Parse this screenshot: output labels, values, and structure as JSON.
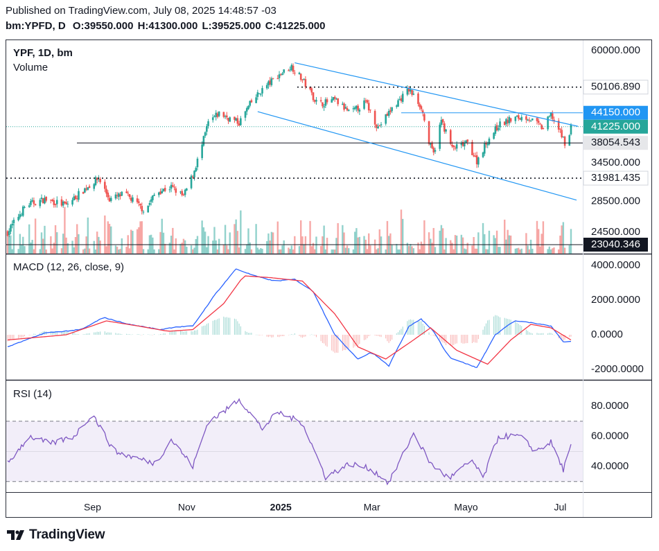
{
  "header": {
    "line1": "Published on TradingView.com, July 08, 2025 14:48:57 -03",
    "symbol": "bm:YPFD, D",
    "o_label": "O:",
    "o": "39550.000",
    "h_label": "H:",
    "h": "41300.000",
    "l_label": "L:",
    "l": "39525.000",
    "c_label": "C:",
    "c": "41225.000"
  },
  "brand": "TradingView",
  "colors": {
    "up": "#26a69a",
    "down": "#ef5350",
    "macd": "#2962ff",
    "signal": "#f23645",
    "rsi": "#7e57c2",
    "channel": "#2196f3"
  },
  "chart_data": [
    {
      "type": "candlestick",
      "title": "YPF, 1D, bm",
      "legend": [
        "Volume"
      ],
      "x_ticks": [
        "Sep",
        "Nov",
        "2025",
        "Mar",
        "Mayo",
        "Jul"
      ],
      "y_ticks": [
        "60000.000",
        "34500.000",
        "28500.000",
        "24500.000"
      ],
      "ylim": [
        22000,
        62000
      ],
      "y_scale": "log",
      "price_labels": [
        {
          "value": "50106.890",
          "style": "dotted-line"
        },
        {
          "value": "44150.000",
          "style": "blue-horizontal"
        },
        {
          "value": "41225.000",
          "style": "last-price"
        },
        {
          "value": "38054.543",
          "style": "horizontal-line"
        },
        {
          "value": "31981.435",
          "style": "dotted-line"
        },
        {
          "value": "23040.346",
          "style": "horizontal-line"
        }
      ],
      "last": {
        "open": 39550,
        "high": 41300,
        "low": 39525,
        "close": 41225
      },
      "path_points": [
        [
          "2024-07-08",
          24500
        ],
        [
          "2024-07-20",
          28000
        ],
        [
          "2024-08-01",
          28800
        ],
        [
          "2024-08-15",
          28000
        ],
        [
          "2024-08-28",
          30500
        ],
        [
          "2024-09-05",
          31980
        ],
        [
          "2024-09-12",
          28800
        ],
        [
          "2024-09-22",
          29600
        ],
        [
          "2024-10-05",
          27200
        ],
        [
          "2024-10-12",
          29800
        ],
        [
          "2024-10-22",
          30600
        ],
        [
          "2024-10-30",
          29200
        ],
        [
          "2024-11-05",
          32500
        ],
        [
          "2024-11-10",
          36500
        ],
        [
          "2024-11-15",
          42000
        ],
        [
          "2024-11-22",
          44000
        ],
        [
          "2024-12-05",
          42000
        ],
        [
          "2024-12-12",
          46000
        ],
        [
          "2024-12-20",
          49500
        ],
        [
          "2024-12-30",
          53000
        ],
        [
          "2025-01-08",
          55500
        ],
        [
          "2025-01-15",
          52000
        ],
        [
          "2025-01-25",
          46000
        ],
        [
          "2025-02-05",
          47000
        ],
        [
          "2025-02-15",
          44000
        ],
        [
          "2025-02-25",
          46500
        ],
        [
          "2025-03-05",
          41000
        ],
        [
          "2025-03-15",
          45500
        ],
        [
          "2025-03-25",
          49500
        ],
        [
          "2025-04-02",
          45500
        ],
        [
          "2025-04-07",
          38000
        ],
        [
          "2025-04-10",
          36000
        ],
        [
          "2025-04-15",
          42500
        ],
        [
          "2025-04-22",
          37000
        ],
        [
          "2025-05-02",
          38000
        ],
        [
          "2025-05-08",
          34800
        ],
        [
          "2025-05-15",
          38500
        ],
        [
          "2025-05-22",
          41500
        ],
        [
          "2025-06-01",
          43000
        ],
        [
          "2025-06-10",
          43200
        ],
        [
          "2025-06-20",
          40800
        ],
        [
          "2025-06-25",
          43800
        ],
        [
          "2025-07-01",
          40000
        ],
        [
          "2025-07-04",
          38200
        ],
        [
          "2025-07-07",
          39500
        ],
        [
          "2025-07-08",
          41225
        ]
      ],
      "volume": "bars, up #26a69a / down #ef5350, faded"
    },
    {
      "type": "line",
      "title": "MACD (12, 26, close, 9)",
      "y_ticks": [
        "4000.0000",
        "2000.0000",
        "0.0000",
        "-2000.0000"
      ],
      "ylim": [
        -2400,
        4400
      ],
      "macd_points": [
        [
          "2024-07-08",
          -700
        ],
        [
          "2024-08-01",
          100
        ],
        [
          "2024-08-25",
          300
        ],
        [
          "2024-09-08",
          1000
        ],
        [
          "2024-09-25",
          600
        ],
        [
          "2024-10-15",
          300
        ],
        [
          "2024-10-25",
          450
        ],
        [
          "2024-11-05",
          500
        ],
        [
          "2024-11-20",
          2400
        ],
        [
          "2024-12-03",
          3800
        ],
        [
          "2024-12-15",
          3400
        ],
        [
          "2024-12-28",
          3100
        ],
        [
          "2025-01-10",
          3200
        ],
        [
          "2025-01-22",
          2500
        ],
        [
          "2025-02-05",
          0
        ],
        [
          "2025-02-20",
          -1400
        ],
        [
          "2025-03-01",
          -1000
        ],
        [
          "2025-03-12",
          -1800
        ],
        [
          "2025-03-25",
          500
        ],
        [
          "2025-04-02",
          900
        ],
        [
          "2025-04-10",
          200
        ],
        [
          "2025-04-20",
          -1300
        ],
        [
          "2025-05-08",
          -1900
        ],
        [
          "2025-05-20",
          0
        ],
        [
          "2025-06-01",
          800
        ],
        [
          "2025-06-12",
          700
        ],
        [
          "2025-06-25",
          500
        ],
        [
          "2025-07-03",
          -400
        ],
        [
          "2025-07-08",
          -400
        ]
      ],
      "signal_points": [
        [
          "2024-07-08",
          -300
        ],
        [
          "2024-08-15",
          0
        ],
        [
          "2024-09-10",
          800
        ],
        [
          "2024-10-01",
          500
        ],
        [
          "2024-10-20",
          200
        ],
        [
          "2024-11-05",
          300
        ],
        [
          "2024-11-25",
          1800
        ],
        [
          "2024-12-08",
          3400
        ],
        [
          "2024-12-25",
          3300
        ],
        [
          "2025-01-15",
          3100
        ],
        [
          "2025-02-05",
          1200
        ],
        [
          "2025-02-20",
          -700
        ],
        [
          "2025-03-10",
          -1400
        ],
        [
          "2025-03-28",
          -300
        ],
        [
          "2025-04-08",
          400
        ],
        [
          "2025-04-25",
          -900
        ],
        [
          "2025-05-15",
          -1700
        ],
        [
          "2025-05-30",
          -300
        ],
        [
          "2025-06-12",
          600
        ],
        [
          "2025-06-25",
          400
        ],
        [
          "2025-07-08",
          -300
        ]
      ],
      "histogram": "bars, green above zero / red below zero"
    },
    {
      "type": "line",
      "title": "RSI (14)",
      "y_ticks": [
        "80.0000",
        "60.0000",
        "40.0000"
      ],
      "ylim": [
        20,
        90
      ],
      "bands": [
        30,
        70
      ],
      "rsi_points": [
        [
          "2024-07-08",
          42
        ],
        [
          "2024-07-22",
          60
        ],
        [
          "2024-08-05",
          55
        ],
        [
          "2024-08-20",
          60
        ],
        [
          "2024-09-01",
          75
        ],
        [
          "2024-09-15",
          50
        ],
        [
          "2024-10-01",
          45
        ],
        [
          "2024-10-12",
          42
        ],
        [
          "2024-10-22",
          58
        ],
        [
          "2024-11-05",
          40
        ],
        [
          "2024-11-15",
          70
        ],
        [
          "2024-11-25",
          76
        ],
        [
          "2024-12-05",
          85
        ],
        [
          "2024-12-20",
          65
        ],
        [
          "2024-12-30",
          76
        ],
        [
          "2025-01-08",
          72
        ],
        [
          "2025-01-15",
          69
        ],
        [
          "2025-01-30",
          33
        ],
        [
          "2025-02-15",
          42
        ],
        [
          "2025-03-01",
          38
        ],
        [
          "2025-03-12",
          29
        ],
        [
          "2025-03-28",
          62
        ],
        [
          "2025-04-08",
          42
        ],
        [
          "2025-04-20",
          32
        ],
        [
          "2025-05-05",
          44
        ],
        [
          "2025-05-12",
          32
        ],
        [
          "2025-05-22",
          60
        ],
        [
          "2025-06-05",
          60
        ],
        [
          "2025-06-15",
          50
        ],
        [
          "2025-06-25",
          56
        ],
        [
          "2025-07-03",
          38
        ],
        [
          "2025-07-08",
          53
        ]
      ]
    }
  ]
}
